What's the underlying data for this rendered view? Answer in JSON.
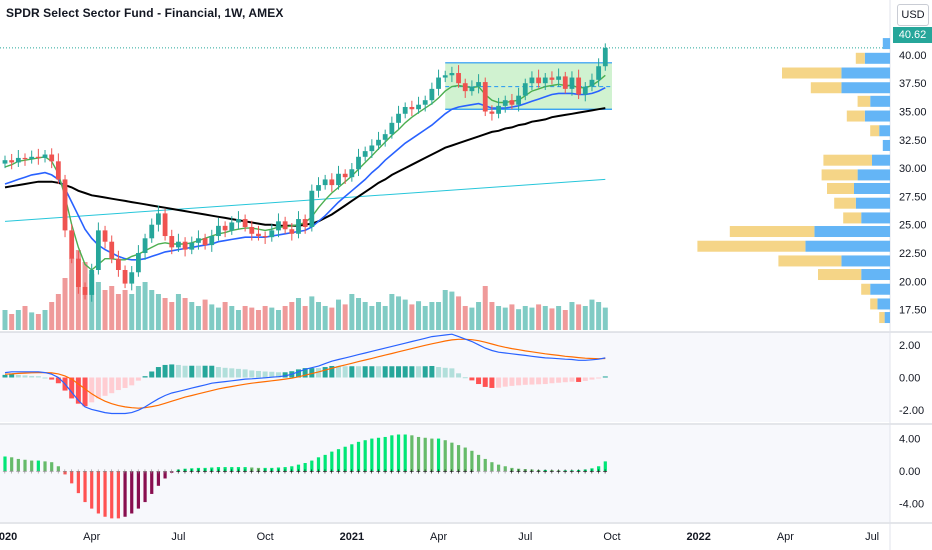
{
  "header": {
    "title": "SPDR Select Sector Fund - Financial, 1W, AMEX",
    "currency_button": "USD",
    "last_price": "40.62"
  },
  "colors": {
    "up": "#26a69a",
    "down": "#ef5350",
    "vol_up": "#80cbc4",
    "vol_down": "#ef9a9a",
    "ema_green": "#4caf50",
    "ma_blue": "#2962ff",
    "ma_black": "#000000",
    "ma_cyan": "#26c6da",
    "macd_line": "#2962ff",
    "signal_line": "#ff6d00",
    "range_box_fill": "#c8f0c8",
    "range_box_border": "#2196f3",
    "vp_up": "#64b5f6",
    "vp_down": "#f5d587"
  },
  "chart_data": [
    {
      "type": "candlestick",
      "panel": "price",
      "title": "SPDR Select Sector Fund - Financial, 1W, AMEX",
      "y_ticks": [
        "17.50",
        "20.00",
        "22.50",
        "25.00",
        "27.50",
        "30.00",
        "32.50",
        "35.00",
        "37.50",
        "40.00"
      ],
      "ylim": [
        15.7,
        42.2
      ],
      "x_ticks": [
        "2020",
        "Apr",
        "Jul",
        "Oct",
        "2021",
        "Apr",
        "Jul",
        "Oct",
        "2022",
        "Apr",
        "Jul"
      ],
      "x_tick_weeks": [
        0,
        13,
        26,
        39,
        52,
        65,
        78,
        91,
        104,
        117,
        130
      ],
      "bold_ticks": [
        "2020",
        "2021",
        "2022"
      ],
      "close": [
        30.7,
        30.5,
        30.9,
        30.8,
        31.0,
        30.9,
        31.2,
        30.6,
        29.0,
        24.5,
        22.0,
        19.5,
        18.8,
        21.0,
        24.5,
        23.5,
        22.0,
        21.0,
        19.8,
        20.8,
        22.5,
        23.8,
        25.0,
        26.0,
        24.0,
        23.0,
        23.5,
        22.8,
        23.4,
        23.8,
        23.2,
        24.0,
        24.9,
        24.5,
        25.2,
        25.5,
        24.8,
        24.2,
        24.0,
        23.9,
        24.5,
        25.3,
        24.6,
        24.2,
        25.5,
        24.8,
        28.0,
        28.5,
        29.0,
        28.5,
        29.5,
        29.2,
        29.9,
        31.0,
        31.5,
        32.0,
        32.5,
        33.0,
        34.0,
        34.8,
        35.4,
        35.2,
        35.6,
        36.0,
        37.0,
        38.0,
        38.2,
        38.4,
        37.5,
        36.8,
        37.2,
        37.6,
        35.0,
        34.8,
        35.5,
        36.0,
        35.6,
        36.4,
        37.5,
        38.0,
        37.5,
        38.0,
        37.8,
        38.1,
        37.0,
        38.0,
        36.5,
        37.2,
        37.8,
        39.0,
        40.62
      ],
      "series": [
        {
          "name": "",
          "role": "short MA (green)",
          "values": [
            30.1,
            30.3,
            30.6,
            30.7,
            30.8,
            30.9,
            31.0,
            30.6,
            29.5,
            27.5,
            25.0,
            23.0,
            21.5,
            21.0,
            21.5,
            22.0,
            22.0,
            21.9,
            21.9,
            22.2,
            22.4,
            22.7,
            23.0,
            23.3,
            23.4,
            23.3,
            23.3,
            23.3,
            23.4,
            23.6,
            23.8,
            24.0,
            24.2,
            24.3,
            24.5,
            24.6,
            24.7,
            24.7,
            24.6,
            24.5,
            24.6,
            24.8,
            24.8,
            24.9,
            25.0,
            25.2,
            25.7,
            26.5,
            27.2,
            27.8,
            28.3,
            28.8,
            29.3,
            29.9,
            30.5,
            31.1,
            31.7,
            32.3,
            32.9,
            33.4,
            34.0,
            34.5,
            34.9,
            35.3,
            35.7,
            36.2,
            36.8,
            37.2,
            37.3,
            37.2,
            37.1,
            37.2,
            36.5,
            36.0,
            35.8,
            35.8,
            35.9,
            36.0,
            36.4,
            36.8,
            37.0,
            37.2,
            37.3,
            37.4,
            37.3,
            37.3,
            37.1,
            37.1,
            37.3,
            37.7,
            38.2
          ]
        },
        {
          "name": "",
          "role": "medium MA (blue)",
          "values": [
            28.6,
            28.8,
            29.0,
            29.2,
            29.4,
            29.5,
            29.6,
            29.4,
            29.0,
            28.2,
            27.0,
            25.8,
            24.6,
            23.8,
            23.2,
            22.8,
            22.5,
            22.2,
            22.0,
            21.9,
            21.9,
            22.0,
            22.2,
            22.4,
            22.6,
            22.7,
            22.8,
            22.9,
            23.0,
            23.1,
            23.2,
            23.3,
            23.5,
            23.6,
            23.7,
            23.8,
            23.9,
            23.9,
            23.9,
            23.9,
            24.0,
            24.1,
            24.2,
            24.3,
            24.4,
            24.5,
            24.8,
            25.3,
            25.8,
            26.4,
            27.0,
            27.5,
            28.0,
            28.5,
            29.0,
            29.6,
            30.1,
            30.7,
            31.2,
            31.7,
            32.2,
            32.6,
            33.0,
            33.4,
            33.8,
            34.3,
            34.8,
            35.2,
            35.4,
            35.5,
            35.6,
            35.7,
            35.5,
            35.3,
            35.3,
            35.3,
            35.4,
            35.5,
            35.7,
            35.9,
            36.1,
            36.3,
            36.5,
            36.6,
            36.6,
            36.6,
            36.5,
            36.5,
            36.6,
            36.8,
            37.1
          ]
        },
        {
          "name": "",
          "role": "long MA (black)",
          "values": [
            28.3,
            28.4,
            28.5,
            28.6,
            28.7,
            28.8,
            28.8,
            28.8,
            28.7,
            28.5,
            28.3,
            28.0,
            27.8,
            27.6,
            27.5,
            27.4,
            27.3,
            27.2,
            27.1,
            27.0,
            26.9,
            26.8,
            26.7,
            26.6,
            26.5,
            26.4,
            26.3,
            26.2,
            26.1,
            26.0,
            25.9,
            25.8,
            25.7,
            25.6,
            25.5,
            25.4,
            25.3,
            25.2,
            25.1,
            25.0,
            25.0,
            24.9,
            24.9,
            24.9,
            24.9,
            25.0,
            25.1,
            25.3,
            25.6,
            25.9,
            26.3,
            26.7,
            27.1,
            27.5,
            27.9,
            28.3,
            28.7,
            29.0,
            29.4,
            29.7,
            30.0,
            30.3,
            30.6,
            30.9,
            31.2,
            31.5,
            31.8,
            32.0,
            32.2,
            32.4,
            32.6,
            32.8,
            33.0,
            33.2,
            33.3,
            33.5,
            33.6,
            33.8,
            33.9,
            34.1,
            34.2,
            34.3,
            34.5,
            34.6,
            34.7,
            34.8,
            34.9,
            35.0,
            35.1,
            35.2,
            35.3
          ]
        },
        {
          "name": "",
          "role": "very long MA (cyan)",
          "start": 0,
          "end": 90,
          "values_endpoints": [
            25.3,
            29.0
          ]
        }
      ],
      "range_box": {
        "from_week": 66,
        "to_week": 91,
        "top": 39.3,
        "bottom": 35.2,
        "mid": 37.2
      },
      "volume_profile": [
        {
          "price": 41.0,
          "up": 0.04,
          "down": 0.0
        },
        {
          "price": 39.7,
          "up": 0.14,
          "down": 0.05
        },
        {
          "price": 38.4,
          "up": 0.27,
          "down": 0.33
        },
        {
          "price": 37.1,
          "up": 0.27,
          "down": 0.17
        },
        {
          "price": 35.9,
          "up": 0.11,
          "down": 0.07
        },
        {
          "price": 34.6,
          "up": 0.14,
          "down": 0.1
        },
        {
          "price": 33.3,
          "up": 0.06,
          "down": 0.05
        },
        {
          "price": 32.0,
          "up": 0.04,
          "down": 0.0
        },
        {
          "price": 30.7,
          "up": 0.1,
          "down": 0.27
        },
        {
          "price": 29.4,
          "up": 0.18,
          "down": 0.2
        },
        {
          "price": 28.2,
          "up": 0.2,
          "down": 0.15
        },
        {
          "price": 26.9,
          "up": 0.19,
          "down": 0.12
        },
        {
          "price": 25.6,
          "up": 0.16,
          "down": 0.1
        },
        {
          "price": 24.4,
          "up": 0.42,
          "down": 0.47
        },
        {
          "price": 23.1,
          "up": 0.47,
          "down": 0.6
        },
        {
          "price": 21.8,
          "up": 0.27,
          "down": 0.35
        },
        {
          "price": 20.6,
          "up": 0.16,
          "down": 0.24
        },
        {
          "price": 19.3,
          "up": 0.11,
          "down": 0.05
        },
        {
          "price": 18.0,
          "up": 0.07,
          "down": 0.04
        },
        {
          "price": 16.8,
          "up": 0.03,
          "down": 0.03
        }
      ]
    },
    {
      "type": "bar",
      "panel": "volume",
      "values_relative": [
        0.25,
        0.2,
        0.25,
        0.3,
        0.22,
        0.2,
        0.25,
        0.35,
        0.45,
        0.65,
        0.9,
        1.0,
        0.85,
        0.7,
        0.6,
        0.5,
        0.55,
        0.45,
        0.5,
        0.45,
        0.55,
        0.6,
        0.5,
        0.45,
        0.4,
        0.35,
        0.45,
        0.4,
        0.35,
        0.3,
        0.38,
        0.32,
        0.28,
        0.35,
        0.3,
        0.25,
        0.3,
        0.28,
        0.25,
        0.3,
        0.28,
        0.25,
        0.3,
        0.35,
        0.4,
        0.3,
        0.42,
        0.35,
        0.3,
        0.28,
        0.38,
        0.32,
        0.45,
        0.4,
        0.35,
        0.3,
        0.35,
        0.3,
        0.45,
        0.42,
        0.38,
        0.32,
        0.36,
        0.3,
        0.35,
        0.35,
        0.5,
        0.48,
        0.42,
        0.3,
        0.28,
        0.35,
        0.55,
        0.35,
        0.3,
        0.28,
        0.32,
        0.26,
        0.3,
        0.28,
        0.32,
        0.3,
        0.27,
        0.3,
        0.25,
        0.35,
        0.32,
        0.3,
        0.38,
        0.35,
        0.28
      ]
    },
    {
      "type": "line",
      "panel": "macd",
      "y_ticks": [
        "2.00",
        "0.00",
        "-2.00"
      ],
      "ylim": [
        -2.6,
        2.6
      ],
      "series": [
        {
          "name": "",
          "role": "macd (blue)",
          "values": [
            0.3,
            0.35,
            0.35,
            0.35,
            0.35,
            0.35,
            0.3,
            0.2,
            0.0,
            -0.4,
            -0.9,
            -1.4,
            -1.8,
            -1.95,
            -2.05,
            -2.15,
            -2.2,
            -2.2,
            -2.2,
            -2.15,
            -2.0,
            -1.8,
            -1.55,
            -1.3,
            -1.1,
            -0.95,
            -0.85,
            -0.75,
            -0.65,
            -0.55,
            -0.45,
            -0.35,
            -0.3,
            -0.25,
            -0.2,
            -0.15,
            -0.1,
            -0.08,
            -0.05,
            -0.02,
            0.02,
            0.05,
            0.1,
            0.2,
            0.35,
            0.5,
            0.6,
            0.7,
            0.85,
            1.0,
            1.1,
            1.2,
            1.3,
            1.4,
            1.5,
            1.6,
            1.7,
            1.8,
            1.9,
            2.0,
            2.1,
            2.2,
            2.3,
            2.4,
            2.5,
            2.55,
            2.6,
            2.65,
            2.5,
            2.35,
            2.2,
            2.0,
            1.8,
            1.65,
            1.55,
            1.5,
            1.45,
            1.4,
            1.35,
            1.3,
            1.25,
            1.2,
            1.18,
            1.15,
            1.12,
            1.1,
            1.05,
            1.05,
            1.08,
            1.12,
            1.2
          ]
        },
        {
          "name": "",
          "role": "signal (orange)",
          "values": [
            0.2,
            0.22,
            0.25,
            0.27,
            0.29,
            0.3,
            0.3,
            0.28,
            0.22,
            0.1,
            -0.1,
            -0.4,
            -0.7,
            -1.0,
            -1.25,
            -1.45,
            -1.6,
            -1.72,
            -1.8,
            -1.85,
            -1.88,
            -1.85,
            -1.78,
            -1.7,
            -1.58,
            -1.45,
            -1.33,
            -1.2,
            -1.1,
            -1.0,
            -0.9,
            -0.8,
            -0.7,
            -0.62,
            -0.55,
            -0.48,
            -0.41,
            -0.35,
            -0.3,
            -0.25,
            -0.2,
            -0.15,
            -0.1,
            -0.04,
            0.04,
            0.14,
            0.24,
            0.34,
            0.45,
            0.56,
            0.67,
            0.77,
            0.87,
            0.97,
            1.07,
            1.17,
            1.27,
            1.37,
            1.47,
            1.57,
            1.67,
            1.77,
            1.87,
            1.97,
            2.06,
            2.15,
            2.23,
            2.3,
            2.34,
            2.34,
            2.31,
            2.25,
            2.16,
            2.05,
            1.94,
            1.85,
            1.77,
            1.7,
            1.63,
            1.57,
            1.51,
            1.45,
            1.4,
            1.35,
            1.3,
            1.26,
            1.22,
            1.18,
            1.16,
            1.15,
            1.16
          ]
        }
      ]
    },
    {
      "type": "bar",
      "panel": "momentum",
      "y_ticks": [
        "4.00",
        "0.00",
        "-4.00"
      ],
      "ylim": [
        -6.0,
        5.3
      ],
      "values": [
        1.8,
        1.7,
        1.5,
        1.4,
        1.3,
        1.3,
        1.2,
        1.1,
        0.6,
        -0.4,
        -1.5,
        -2.7,
        -3.8,
        -4.6,
        -5.2,
        -5.6,
        -5.8,
        -5.8,
        -5.6,
        -5.2,
        -4.6,
        -3.8,
        -2.8,
        -1.8,
        -0.9,
        -0.2,
        0.2,
        0.3,
        0.35,
        0.4,
        0.4,
        0.45,
        0.5,
        0.5,
        0.5,
        0.5,
        0.5,
        0.45,
        0.4,
        0.4,
        0.4,
        0.45,
        0.5,
        0.6,
        0.8,
        1.0,
        1.3,
        1.7,
        2.0,
        2.4,
        2.7,
        3.0,
        3.3,
        3.6,
        3.8,
        4.0,
        4.1,
        4.2,
        4.4,
        4.5,
        4.5,
        4.4,
        4.2,
        4.1,
        4.0,
        4.0,
        3.8,
        3.5,
        3.2,
        2.9,
        2.5,
        2.0,
        1.5,
        1.1,
        0.8,
        0.6,
        0.4,
        0.3,
        0.25,
        0.2,
        0.15,
        0.15,
        0.12,
        0.1,
        0.1,
        0.1,
        0.15,
        0.2,
        0.35,
        0.6,
        1.2
      ],
      "colors": {
        "pos_strong": "#00e676",
        "pos_weak": "#66bb6a",
        "neg_strong": "#ff5252",
        "neg_weak": "#880e4f"
      }
    }
  ]
}
